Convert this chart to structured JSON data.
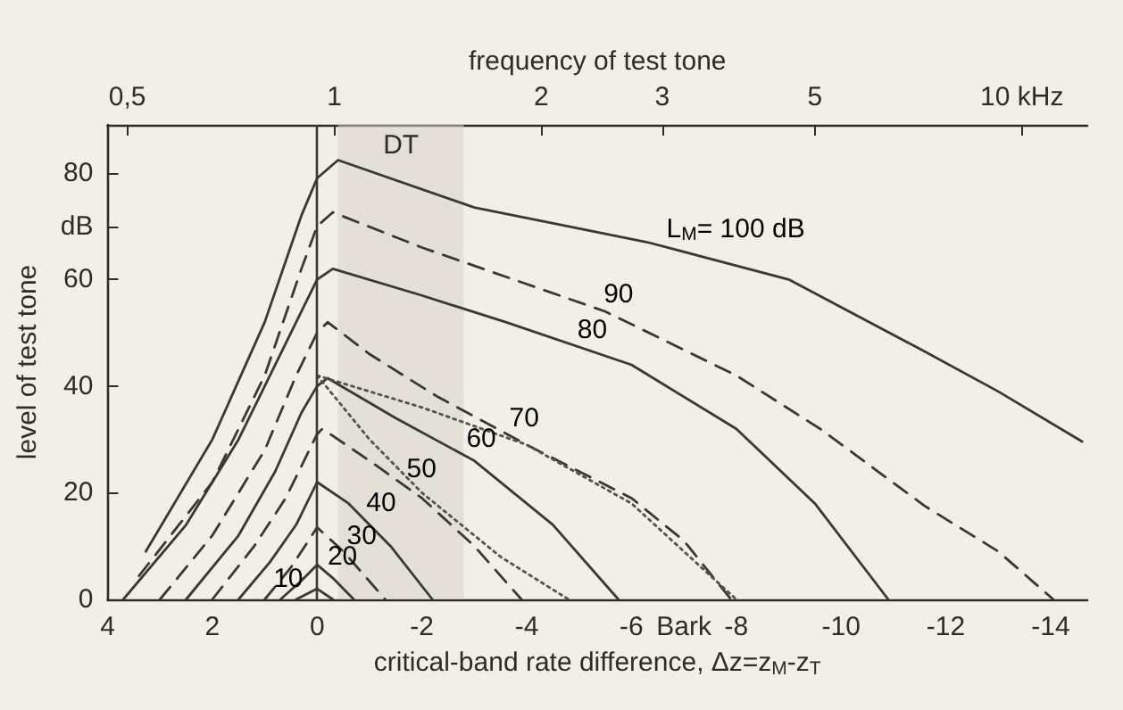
{
  "chart_data": {
    "type": "line",
    "x2label": "frequency of test tone",
    "xlabel": "critical-band rate difference, Δz=z$_{M}$-z$_{T}$",
    "ylabel": "level of test tone",
    "xlim": [
      4,
      -14.7
    ],
    "xticks": [
      4,
      2,
      0,
      -2,
      -4,
      -6,
      {
        "value": -7,
        "label": "Bark"
      },
      -8,
      -10,
      -12,
      -14
    ],
    "x2lim": [
      0.468,
      12.45
    ],
    "x2ticks": [
      {
        "value": 0.5,
        "label": "0,5"
      },
      1,
      2,
      3,
      5,
      {
        "value": 10,
        "label": "10 kHz"
      }
    ],
    "log": "x2",
    "ylim": [
      0,
      89
    ],
    "yticks": [
      0,
      20,
      40,
      60,
      {
        "value": 70,
        "label": "dB"
      },
      80
    ],
    "grid": false,
    "marker": "none",
    "series": [
      {
        "color": "#3a3835",
        "line_style": "solid",
        "x": [
          3.27,
          2,
          1,
          0.3,
          0,
          -0.4,
          -3,
          -6.3,
          -9,
          -11.5,
          -13,
          -14.6
        ],
        "values": [
          9,
          30,
          52,
          72,
          79,
          82.4,
          73.5,
          67,
          60,
          47,
          39,
          29.6
        ]
      },
      {
        "color": "#3a3835",
        "line_style": "dashed",
        "x": [
          3.4,
          2,
          1,
          0.3,
          0,
          -0.3,
          -2,
          -5.5,
          -8,
          -9.6,
          -11.6,
          -13,
          -14.05
        ],
        "values": [
          4.4,
          22,
          42,
          62,
          70,
          72.6,
          66,
          54,
          42,
          32,
          17.5,
          9,
          0
        ]
      },
      {
        "color": "#3a3835",
        "line_style": "solid",
        "x": [
          3.7,
          2.5,
          1.5,
          0.5,
          0,
          -0.3,
          -2,
          -3.6,
          -6,
          -8,
          -9.5,
          -10.9
        ],
        "values": [
          0,
          14,
          30,
          50,
          60,
          62,
          57,
          52,
          44,
          32,
          18,
          0
        ]
      },
      {
        "color": "#3a3835",
        "line_style": "dashed",
        "x": [
          3.0,
          2,
          1,
          0.4,
          0,
          -0.2,
          -1,
          -2.3,
          -4,
          -6,
          -7,
          -7.9
        ],
        "values": [
          0,
          12,
          28,
          42,
          50,
          52,
          46,
          38,
          29,
          19,
          11,
          0
        ]
      },
      {
        "color": "#3a3835",
        "line_style": "solid",
        "x": [
          2.5,
          1.5,
          0.8,
          0.3,
          0,
          -0.2,
          -1.5,
          -3,
          -4.5,
          -5.75
        ],
        "values": [
          0,
          12,
          24,
          35,
          40,
          41.5,
          34,
          26,
          14,
          0
        ]
      },
      {
        "color": "#3a3835",
        "line_style": "dashed",
        "x": [
          2.0,
          1.2,
          0.6,
          0.2,
          0,
          -0.1,
          -1,
          -2,
          -3,
          -3.9
        ],
        "values": [
          0,
          10,
          19,
          27,
          31,
          32,
          26,
          19,
          10,
          0
        ]
      },
      {
        "color": "#3a3835",
        "line_style": "solid",
        "x": [
          1.5,
          0.9,
          0.4,
          0,
          -0.6,
          -1.4,
          -2.2
        ],
        "values": [
          0,
          7,
          14,
          22,
          18,
          10,
          0
        ]
      },
      {
        "color": "#3a3835",
        "line_style": "dashed",
        "x": [
          1.0,
          0.5,
          0,
          -0.5,
          -1.3
        ],
        "values": [
          0,
          6,
          13.5,
          9,
          0
        ]
      },
      {
        "color": "#3a3835",
        "line_style": "solid",
        "x": [
          0.7,
          0.3,
          0,
          -0.3,
          -0.7
        ],
        "values": [
          0,
          3.5,
          6.5,
          4,
          0
        ]
      },
      {
        "color": "#3a3835",
        "line_style": "solid",
        "x": [
          0.4,
          0,
          -0.3
        ],
        "values": [
          0,
          2,
          0
        ]
      },
      {
        "color": "#55524d",
        "line_style": "dotted",
        "x": [
          0,
          -2,
          -4,
          -6,
          -8
        ],
        "values": [
          42,
          36,
          29,
          18,
          0
        ]
      },
      {
        "color": "#55524d",
        "line_style": "dotted",
        "x": [
          0,
          -1,
          -2,
          -3.5,
          -4.8
        ],
        "values": [
          42,
          30,
          20,
          8,
          0
        ]
      }
    ],
    "ref_lines": [
      {
        "axis": "x",
        "value": 0,
        "color": "#3a3835",
        "line_style": "solid"
      }
    ],
    "bands": [
      {
        "axis": "x",
        "from": -0.4,
        "to": -2.8,
        "label": "DT",
        "color": "#d8d4c8"
      }
    ],
    "annotations": [
      {
        "text": "L$_{M}$= 100 dB",
        "x": -6.6,
        "y": 66.2
      },
      {
        "text": "90",
        "x": -5.4,
        "y": 54.3
      },
      {
        "text": "80",
        "x": -4.9,
        "y": 47.7
      },
      {
        "text": "70",
        "x": -3.6,
        "y": 31.1
      },
      {
        "text": "60",
        "x": -2.78,
        "y": 27.2
      },
      {
        "text": "50",
        "x": -1.64,
        "y": 21.5
      },
      {
        "text": "40",
        "x": -0.87,
        "y": 15.3
      },
      {
        "text": "30",
        "x": -0.5,
        "y": 9
      },
      {
        "text": "20",
        "x": -0.13,
        "y": 5.2
      },
      {
        "text": "10",
        "x": 0.2,
        "y": 1
      }
    ]
  }
}
